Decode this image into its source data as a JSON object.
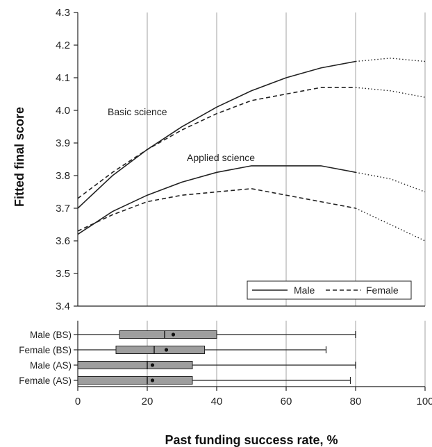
{
  "chart_data": [
    {
      "type": "line",
      "ylabel": "Fitted final score",
      "xlim": [
        0,
        100
      ],
      "ylim": [
        3.4,
        4.3
      ],
      "yticks": [
        "3.4",
        "3.5",
        "3.6",
        "3.7",
        "3.8",
        "3.9",
        "4.0",
        "4.1",
        "4.2",
        "4.3"
      ],
      "grid": "vertical",
      "annotations": {
        "basic": "Basic science",
        "applied": "Applied science"
      },
      "legend": {
        "position": "bottom-right",
        "male": "Male",
        "female": "Female"
      },
      "series": [
        {
          "name": "Male",
          "group": "Basic science",
          "style": "solid",
          "x": [
            0,
            10,
            20,
            30,
            40,
            50,
            60,
            70,
            80,
            90,
            100
          ],
          "y": [
            3.7,
            3.8,
            3.88,
            3.95,
            4.01,
            4.06,
            4.1,
            4.13,
            4.15,
            4.16,
            4.15
          ]
        },
        {
          "name": "Female",
          "group": "Basic science",
          "style": "dashed",
          "x": [
            0,
            10,
            20,
            30,
            40,
            50,
            60,
            70,
            80,
            90,
            100
          ],
          "y": [
            3.73,
            3.81,
            3.88,
            3.94,
            3.99,
            4.03,
            4.05,
            4.07,
            4.07,
            4.06,
            4.04
          ]
        },
        {
          "name": "Male",
          "group": "Applied science",
          "style": "solid",
          "x": [
            0,
            10,
            20,
            30,
            40,
            50,
            60,
            70,
            80,
            90,
            100
          ],
          "y": [
            3.62,
            3.69,
            3.74,
            3.78,
            3.81,
            3.83,
            3.83,
            3.83,
            3.81,
            3.79,
            3.75
          ]
        },
        {
          "name": "Female",
          "group": "Applied science",
          "style": "dashed",
          "x": [
            0,
            10,
            20,
            30,
            40,
            50,
            60,
            70,
            80,
            90,
            100
          ],
          "y": [
            3.63,
            3.68,
            3.72,
            3.74,
            3.75,
            3.76,
            3.74,
            3.72,
            3.7,
            3.65,
            3.6
          ]
        }
      ]
    },
    {
      "type": "box",
      "xlabel": "Past funding success rate, %",
      "xlim": [
        0,
        100
      ],
      "xticks": [
        "0",
        "20",
        "40",
        "60",
        "80",
        "100"
      ],
      "categories": [
        "Male (BS)",
        "Female (BS)",
        "Male (AS)",
        "Female (AS)"
      ],
      "boxes": [
        {
          "min": 0,
          "q1": 12,
          "median": 25,
          "mean": 27.5,
          "q3": 40,
          "max": 80
        },
        {
          "min": 0,
          "q1": 11,
          "median": 22,
          "mean": 25.5,
          "q3": 36.5,
          "max": 71.5
        },
        {
          "min": 0,
          "q1": 0,
          "median": 20,
          "mean": 21.5,
          "q3": 33,
          "max": 80
        },
        {
          "min": 0,
          "q1": 0,
          "median": 20,
          "mean": 21.5,
          "q3": 33,
          "max": 78.5
        }
      ]
    }
  ]
}
